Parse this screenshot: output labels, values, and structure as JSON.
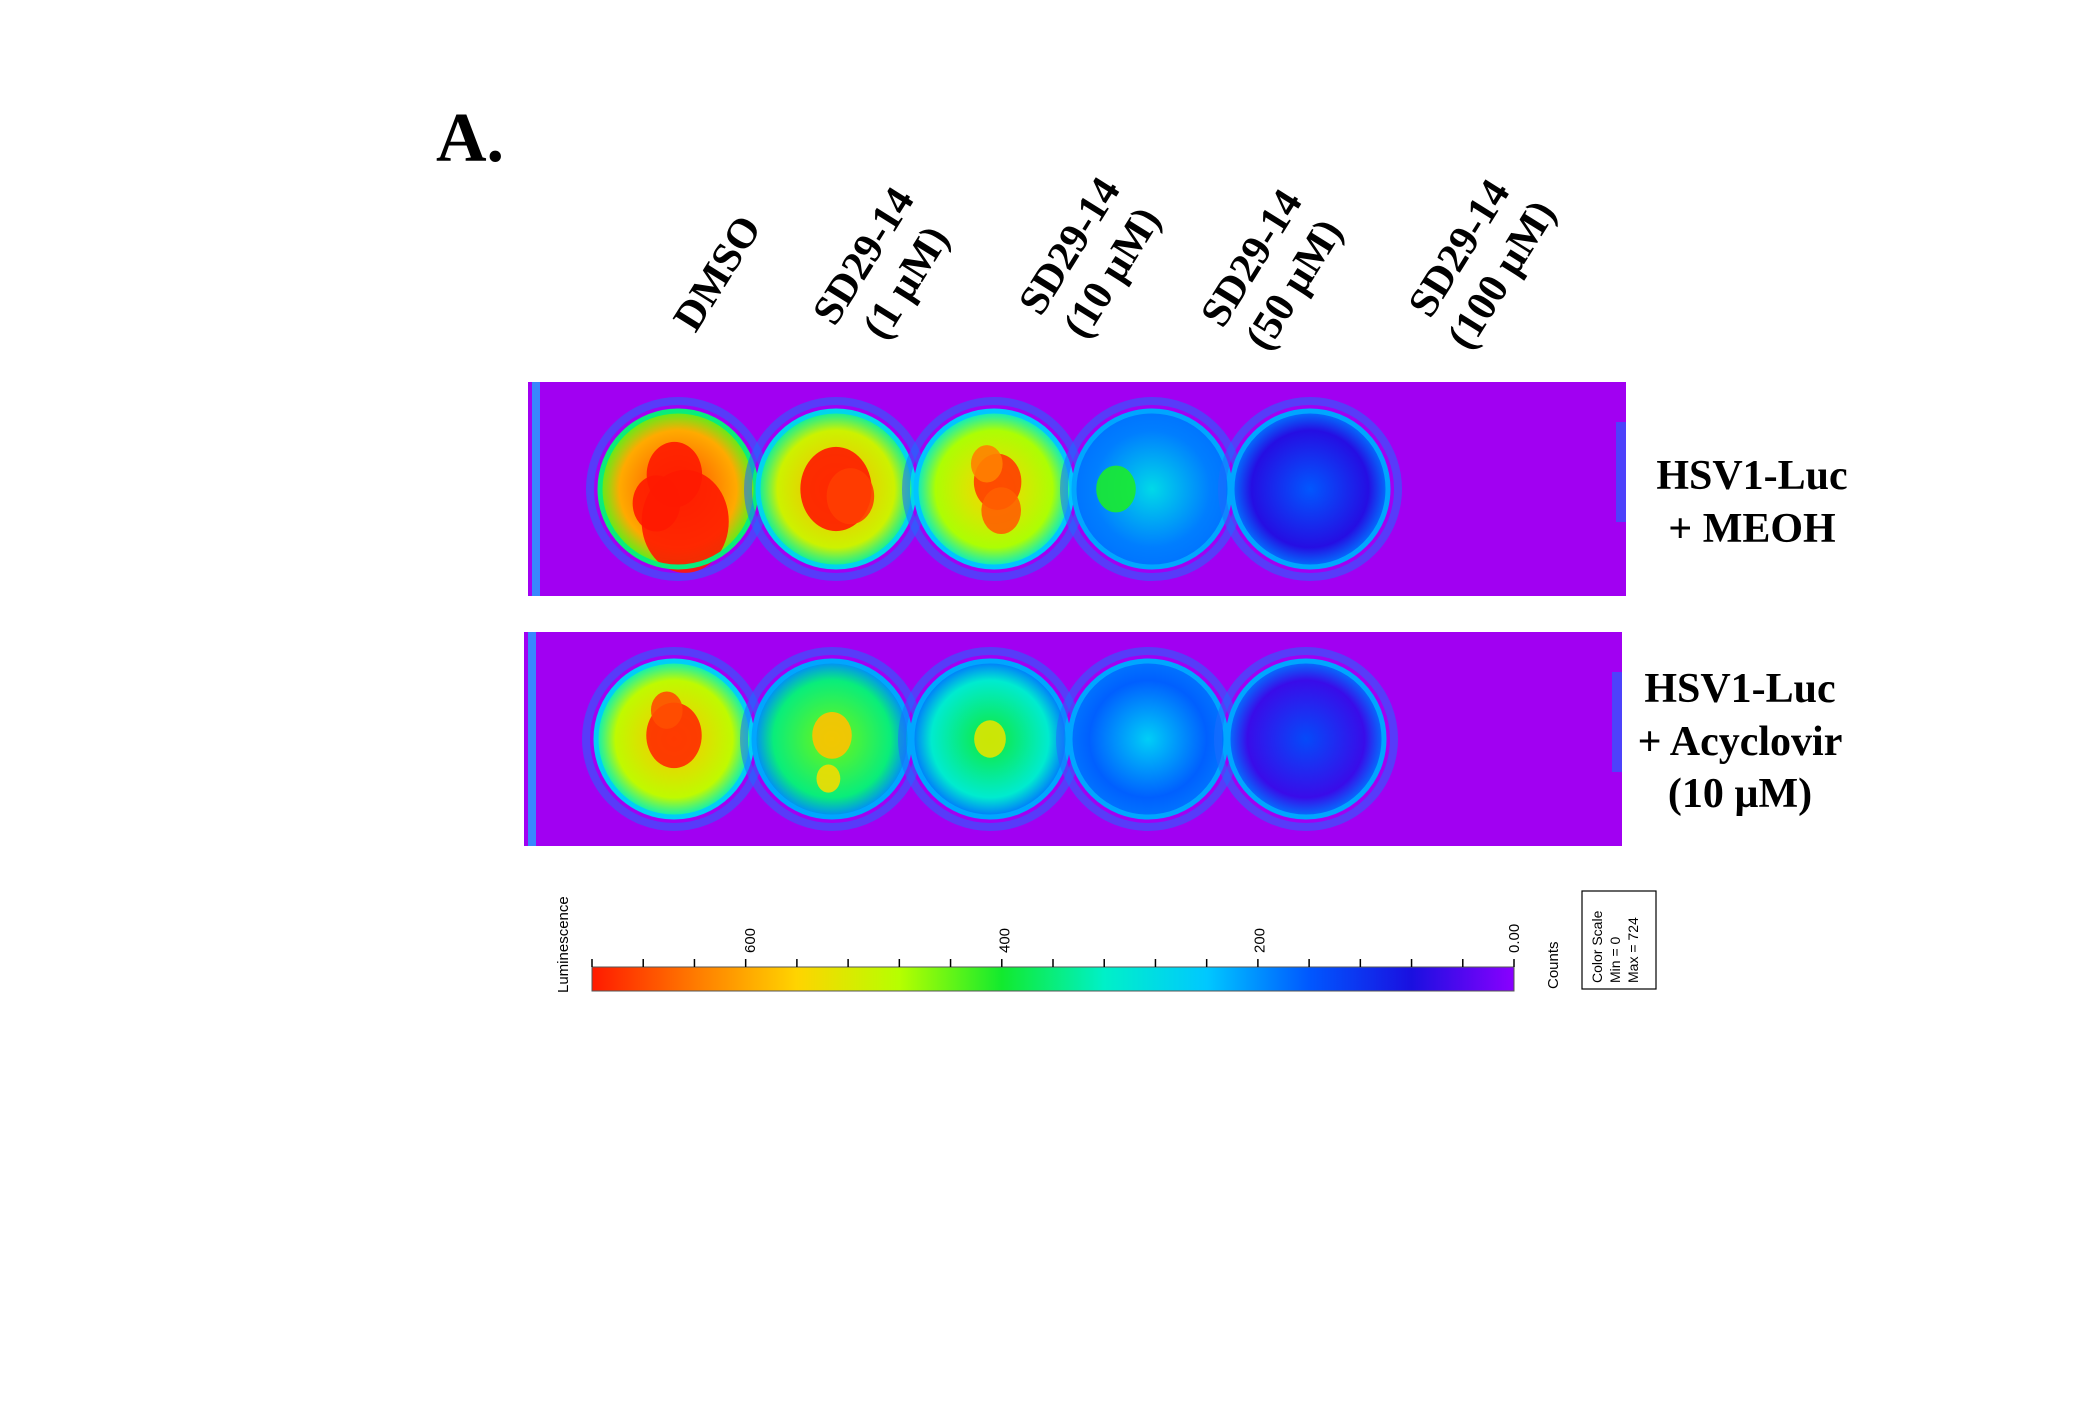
{
  "figure": {
    "panel_label": "A.",
    "columns": [
      {
        "line1": "DMSO",
        "line2": ""
      },
      {
        "line1": "SD29-14",
        "line2": "(1 µM)"
      },
      {
        "line1": "SD29-14",
        "line2": "(10 µM)"
      },
      {
        "line1": "SD29-14",
        "line2": "(50 µM)"
      },
      {
        "line1": "SD29-14",
        "line2": "(100 µM)"
      }
    ],
    "rows": [
      {
        "line1": "HSV1-Luc",
        "line2": "+ MEOH",
        "line3": ""
      },
      {
        "line1": "HSV1-Luc",
        "line2": "+ Acyclovir",
        "line3": "(10 µM)"
      }
    ],
    "wells": [
      [
        {
          "level": 0.95,
          "hot": [
            [
              0.1,
              0.45,
              0.55
            ],
            [
              -0.05,
              -0.2,
              0.35
            ],
            [
              -0.3,
              0.2,
              0.3
            ]
          ]
        },
        {
          "level": 0.82,
          "hot": [
            [
              0.0,
              0.0,
              0.45
            ],
            [
              0.2,
              0.1,
              0.3
            ]
          ]
        },
        {
          "level": 0.78,
          "hot": [
            [
              0.05,
              -0.1,
              0.3
            ],
            [
              0.1,
              0.3,
              0.25
            ],
            [
              -0.1,
              -0.35,
              0.2
            ]
          ]
        },
        {
          "level": 0.38,
          "hot": [
            [
              -0.5,
              0.0,
              0.25
            ]
          ]
        },
        {
          "level": 0.22,
          "hot": []
        }
      ],
      [
        {
          "level": 0.8,
          "hot": [
            [
              0.0,
              -0.05,
              0.35
            ],
            [
              -0.1,
              -0.4,
              0.2
            ]
          ]
        },
        {
          "level": 0.62,
          "hot": [
            [
              0.0,
              -0.05,
              0.25
            ],
            [
              -0.05,
              0.55,
              0.15
            ]
          ]
        },
        {
          "level": 0.55,
          "hot": [
            [
              0.0,
              0.0,
              0.2
            ]
          ]
        },
        {
          "level": 0.35,
          "hot": []
        },
        {
          "level": 0.2,
          "hot": []
        }
      ]
    ],
    "colors": {
      "background": "#a100f2",
      "gradient": [
        "#ff1a00",
        "#ff7a00",
        "#ffd400",
        "#b6ff00",
        "#12ea2e",
        "#00f0c8",
        "#00c8ff",
        "#0058ff",
        "#1a10e0",
        "#8a00ff"
      ]
    }
  },
  "color_scale": {
    "axis_label": "Luminescence",
    "tick_labels": [
      "600",
      "400",
      "200",
      "0.00"
    ],
    "tick_values": [
      600,
      400,
      200,
      0
    ],
    "min": 0,
    "max": 724,
    "unit_label": "Counts",
    "box_title": "Color Scale",
    "box_min": "Min = 0",
    "box_max": "Max = 724"
  }
}
